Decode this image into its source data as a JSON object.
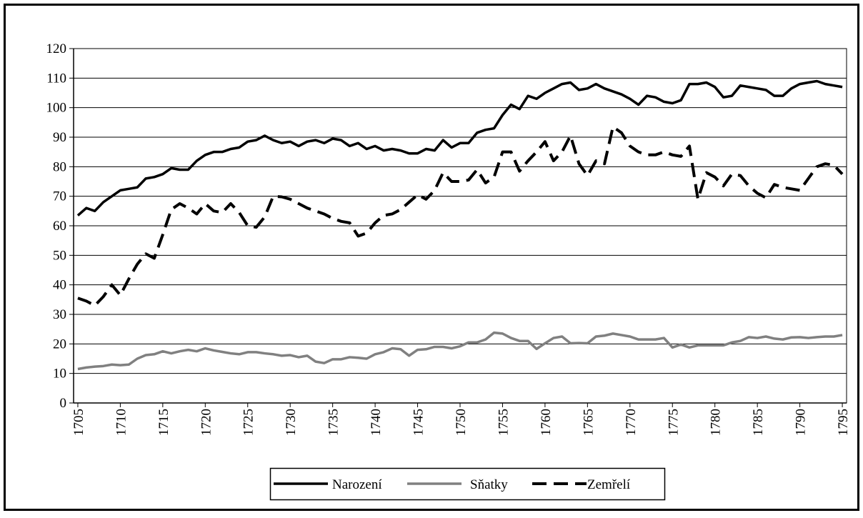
{
  "chart_data": {
    "type": "line",
    "x": [
      1705,
      1706,
      1707,
      1708,
      1709,
      1710,
      1711,
      1712,
      1713,
      1714,
      1715,
      1716,
      1717,
      1718,
      1719,
      1720,
      1721,
      1722,
      1723,
      1724,
      1725,
      1726,
      1727,
      1728,
      1729,
      1730,
      1731,
      1732,
      1733,
      1734,
      1735,
      1736,
      1737,
      1738,
      1739,
      1740,
      1741,
      1742,
      1743,
      1744,
      1745,
      1746,
      1747,
      1748,
      1749,
      1750,
      1751,
      1752,
      1753,
      1754,
      1755,
      1756,
      1757,
      1758,
      1759,
      1760,
      1761,
      1762,
      1763,
      1764,
      1765,
      1766,
      1767,
      1768,
      1769,
      1770,
      1771,
      1772,
      1773,
      1774,
      1775,
      1776,
      1777,
      1778,
      1779,
      1780,
      1781,
      1782,
      1783,
      1784,
      1785,
      1786,
      1787,
      1788,
      1789,
      1790,
      1791,
      1792,
      1793,
      1794,
      1795
    ],
    "series": [
      {
        "name": "Narození",
        "color": "#000000",
        "dash": false,
        "values": [
          63.5,
          66,
          65,
          68,
          70,
          72,
          72.5,
          73,
          76,
          76.5,
          77.5,
          79.5,
          79,
          79,
          82,
          84,
          85,
          85,
          86,
          86.5,
          88.5,
          89,
          90.5,
          89,
          88,
          88.5,
          87,
          88.5,
          89,
          88,
          89.5,
          89,
          87,
          88,
          86,
          87,
          85.5,
          86,
          85.5,
          84.5,
          84.5,
          86,
          85.5,
          89,
          86.5,
          88,
          88,
          91.5,
          92.5,
          93,
          97.5,
          101,
          99.5,
          104,
          103,
          105,
          106.5,
          108,
          108.5,
          106,
          106.5,
          108,
          106.5,
          105.5,
          104.5,
          103,
          101,
          104,
          103.5,
          102,
          101.5,
          102.5,
          108,
          108,
          108.5,
          107,
          103.5,
          104,
          107.5,
          107,
          106.5,
          106,
          104,
          104,
          106.5,
          108,
          108.5,
          109,
          108,
          107.5,
          107
        ]
      },
      {
        "name": "Sňatky",
        "color": "#808080",
        "dash": false,
        "values": [
          11.5,
          12,
          12.3,
          12.5,
          13,
          12.8,
          13,
          15,
          16.2,
          16.5,
          17.5,
          16.8,
          17.5,
          18,
          17.5,
          18.5,
          17.8,
          17.3,
          16.8,
          16.5,
          17.2,
          17.2,
          16.8,
          16.5,
          16,
          16.2,
          15.5,
          16,
          14,
          13.5,
          14.8,
          14.8,
          15.5,
          15.3,
          15,
          16.5,
          17.2,
          18.5,
          18.2,
          16,
          18,
          18.2,
          19,
          19,
          18.5,
          19.2,
          20.5,
          20.5,
          21.5,
          23.8,
          23.5,
          22,
          21,
          21,
          18.3,
          20.2,
          22,
          22.5,
          20.2,
          20.3,
          20.2,
          22.5,
          22.8,
          23.5,
          23,
          22.5,
          21.5,
          21.5,
          21.5,
          22,
          18.8,
          19.8,
          18.8,
          19.5,
          19.5,
          19.5,
          19.5,
          20.5,
          21,
          22.3,
          22,
          22.5,
          21.8,
          21.5,
          22.2,
          22.3,
          22,
          22.3,
          22.5,
          22.5,
          23
        ]
      },
      {
        "name": "Zemřelí",
        "color": "#000000",
        "dash": true,
        "values": [
          35.5,
          34.5,
          33,
          36,
          40,
          36.5,
          42,
          47,
          50.5,
          49,
          57,
          65.5,
          67.5,
          66,
          64,
          67.5,
          65,
          64.5,
          67.5,
          64.5,
          60,
          59.5,
          63,
          70,
          69.8,
          69,
          67.5,
          66,
          65,
          64,
          62.5,
          61.5,
          61,
          56.5,
          57.5,
          61,
          63.5,
          64,
          65.5,
          68,
          70.5,
          69,
          72,
          78,
          75,
          75,
          75.5,
          79,
          74.5,
          76.5,
          85,
          85,
          78.5,
          82,
          85,
          88.5,
          82,
          85,
          90.5,
          81,
          77,
          82,
          81,
          93.5,
          91.5,
          87,
          85,
          84,
          84,
          85,
          84,
          83.5,
          87,
          69,
          78,
          76.5,
          73.5,
          77.5,
          77,
          73.5,
          71,
          69.5,
          74,
          73,
          72.5,
          72,
          76,
          80,
          81,
          80.5,
          77.5
        ]
      }
    ],
    "xlim": [
      1704.5,
      1795.5
    ],
    "xticks": [
      1705,
      1710,
      1715,
      1720,
      1725,
      1730,
      1735,
      1740,
      1745,
      1750,
      1755,
      1760,
      1765,
      1770,
      1775,
      1780,
      1785,
      1790,
      1795
    ],
    "ylim": [
      0,
      120
    ],
    "yticks": [
      0,
      10,
      20,
      30,
      40,
      50,
      60,
      70,
      80,
      90,
      100,
      110,
      120
    ],
    "grid": true,
    "legend": "bottom"
  }
}
